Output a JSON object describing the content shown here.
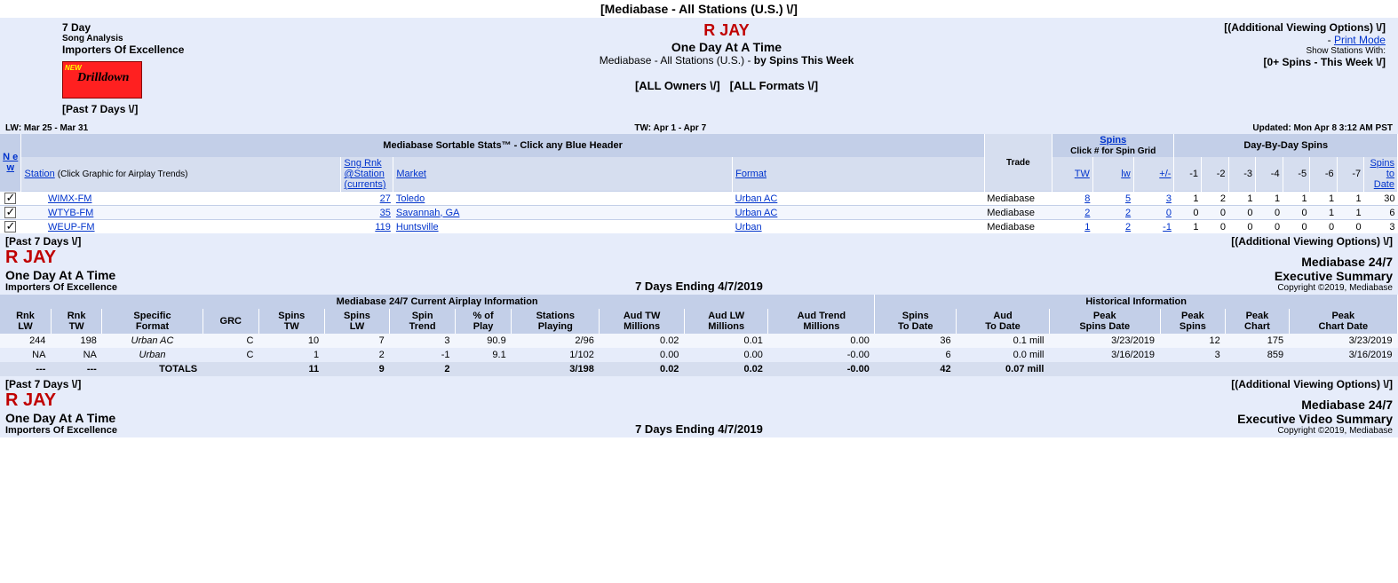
{
  "top": {
    "panel_selector": "[Mediabase - All Stations (U.S.) \\/]",
    "period_label": "7 Day",
    "analysis_label": "Song Analysis",
    "label_name": "Importers Of Excellence",
    "drilldown_new": "NEW",
    "drilldown_text": "Drilldown",
    "past7": "[Past 7 Days \\/]",
    "artist": "R JAY",
    "song": "One Day At A Time",
    "panel_line_prefix": "Mediabase - All Stations (U.S.) - ",
    "panel_line_bold": "by Spins This Week",
    "owners": "[ALL Owners \\/]",
    "formats": "[ALL Formats \\/]",
    "avo": "[(Additional Viewing Options) \\/]",
    "print_mode_dash": "- ",
    "print_mode": "Print Mode",
    "show_stations_with": "Show Stations With:",
    "spins_filter": "[0+ Spins - This Week \\/]"
  },
  "datebar": {
    "lw": "LW: Mar 25 - Mar 31",
    "tw": "TW: Apr 1 - Apr 7",
    "updated": "Updated: Mon Apr 8 3:12 AM PST"
  },
  "t1": {
    "banner_sortable": "Mediabase Sortable Stats™ - Click any Blue Header",
    "banner_spins": "Spins",
    "banner_spins_sub": "Click # for Spin Grid",
    "banner_dbd": "Day-By-Day Spins",
    "h_new": "N e w",
    "h_station": "Station",
    "h_station_note": "(Click Graphic for Airplay Trends)",
    "h_sngrnk1": "Sng Rnk",
    "h_sngrnk2": "@Station",
    "h_sngrnk3": "(currents)",
    "h_market": "Market",
    "h_format": "Format",
    "h_trade": "Trade",
    "h_tw": "TW",
    "h_lw": "lw",
    "h_pm": "+/-",
    "h_d1": "-1",
    "h_d2": "-2",
    "h_d3": "-3",
    "h_d4": "-4",
    "h_d5": "-5",
    "h_d6": "-6",
    "h_d7": "-7",
    "h_std1": "Spins",
    "h_std2": "to",
    "h_std3": "Date",
    "rows": [
      {
        "station": "WIMX-FM",
        "rnk": "27",
        "market": "Toledo",
        "format": "Urban AC",
        "trade": "Mediabase",
        "tw": "8",
        "lw": "5",
        "pm": "3",
        "d": [
          "1",
          "2",
          "1",
          "1",
          "1",
          "1",
          "1"
        ],
        "std": "30"
      },
      {
        "station": "WTYB-FM",
        "rnk": "35",
        "market": "Savannah, GA",
        "format": "Urban AC",
        "trade": "Mediabase",
        "tw": "2",
        "lw": "2",
        "pm": "0",
        "d": [
          "0",
          "0",
          "0",
          "0",
          "0",
          "1",
          "1"
        ],
        "std": "6"
      },
      {
        "station": "WEUP-FM",
        "rnk": "119",
        "market": "Huntsville",
        "format": "Urban",
        "trade": "Mediabase",
        "tw": "1",
        "lw": "2",
        "pm": "-1",
        "d": [
          "1",
          "0",
          "0",
          "0",
          "0",
          "0",
          "0"
        ],
        "std": "3"
      }
    ]
  },
  "mid": {
    "past7": "[Past 7 Days \\/]",
    "avo": "[(Additional Viewing Options) \\/]"
  },
  "exec": {
    "artist": "R JAY",
    "song": "One Day At A Time",
    "label": "Importers Of Excellence",
    "ending": "7 Days Ending 4/7/2019",
    "brand": "Mediabase 24/7",
    "subtitle": "Executive Summary",
    "copyright": "Copyright ©2019, Mediabase"
  },
  "t2": {
    "banner_left": "Mediabase 24/7 Current Airplay Information",
    "banner_right": "Historical Information",
    "h": {
      "rnklw": "Rnk\nLW",
      "rnktw": "Rnk\nTW",
      "fmt": "Specific\nFormat",
      "grc": "GRC",
      "spinstw": "Spins\nTW",
      "spinslw": "Spins\nLW",
      "sptrend": "Spin\nTrend",
      "pct": "% of\nPlay",
      "stns": "Stations\nPlaying",
      "audtw": "Aud TW\nMillions",
      "audlw": "Aud LW\nMillions",
      "audtr": "Aud Trend\nMillions",
      "spstd": "Spins\nTo Date",
      "audtd": "Aud\nTo Date",
      "pksd": "Peak\nSpins Date",
      "pksp": "Peak\nSpins",
      "pkch": "Peak\nChart",
      "pkcd": "Peak\nChart Date"
    },
    "rows": [
      {
        "rnklw": "244",
        "rnktw": "198",
        "fmt": "Urban AC",
        "grc": "C",
        "spinstw": "10",
        "spinslw": "7",
        "sptrend": "3",
        "pct": "90.9",
        "stns": "2/96",
        "audtw": "0.02",
        "audlw": "0.01",
        "audtr": "0.00",
        "spstd": "36",
        "audtd": "0.1 mill",
        "pksd": "3/23/2019",
        "pksp": "12",
        "pkch": "175",
        "pkcd": "3/23/2019"
      },
      {
        "rnklw": "NA",
        "rnktw": "NA",
        "fmt": "Urban",
        "grc": "C",
        "spinstw": "1",
        "spinslw": "2",
        "sptrend": "-1",
        "pct": "9.1",
        "stns": "1/102",
        "audtw": "0.00",
        "audlw": "0.00",
        "audtr": "-0.00",
        "spstd": "6",
        "audtd": "0.0 mill",
        "pksd": "3/16/2019",
        "pksp": "3",
        "pkch": "859",
        "pkcd": "3/16/2019"
      }
    ],
    "totals": {
      "label": "TOTALS",
      "rnklw": "---",
      "rnktw": "---",
      "spinstw": "11",
      "spinslw": "9",
      "sptrend": "2",
      "stns": "3/198",
      "audtw": "0.02",
      "audlw": "0.02",
      "audtr": "-0.00",
      "spstd": "42",
      "audtd": "0.07 mill"
    }
  },
  "exec2": {
    "past7": "[Past 7 Days \\/]",
    "avo": "[(Additional Viewing Options) \\/]",
    "artist": "R JAY",
    "song": "One Day At A Time",
    "label": "Importers Of Excellence",
    "ending": "7 Days Ending 4/7/2019",
    "brand": "Mediabase 24/7",
    "subtitle": "Executive Video Summary",
    "copyright": "Copyright ©2019, Mediabase"
  }
}
